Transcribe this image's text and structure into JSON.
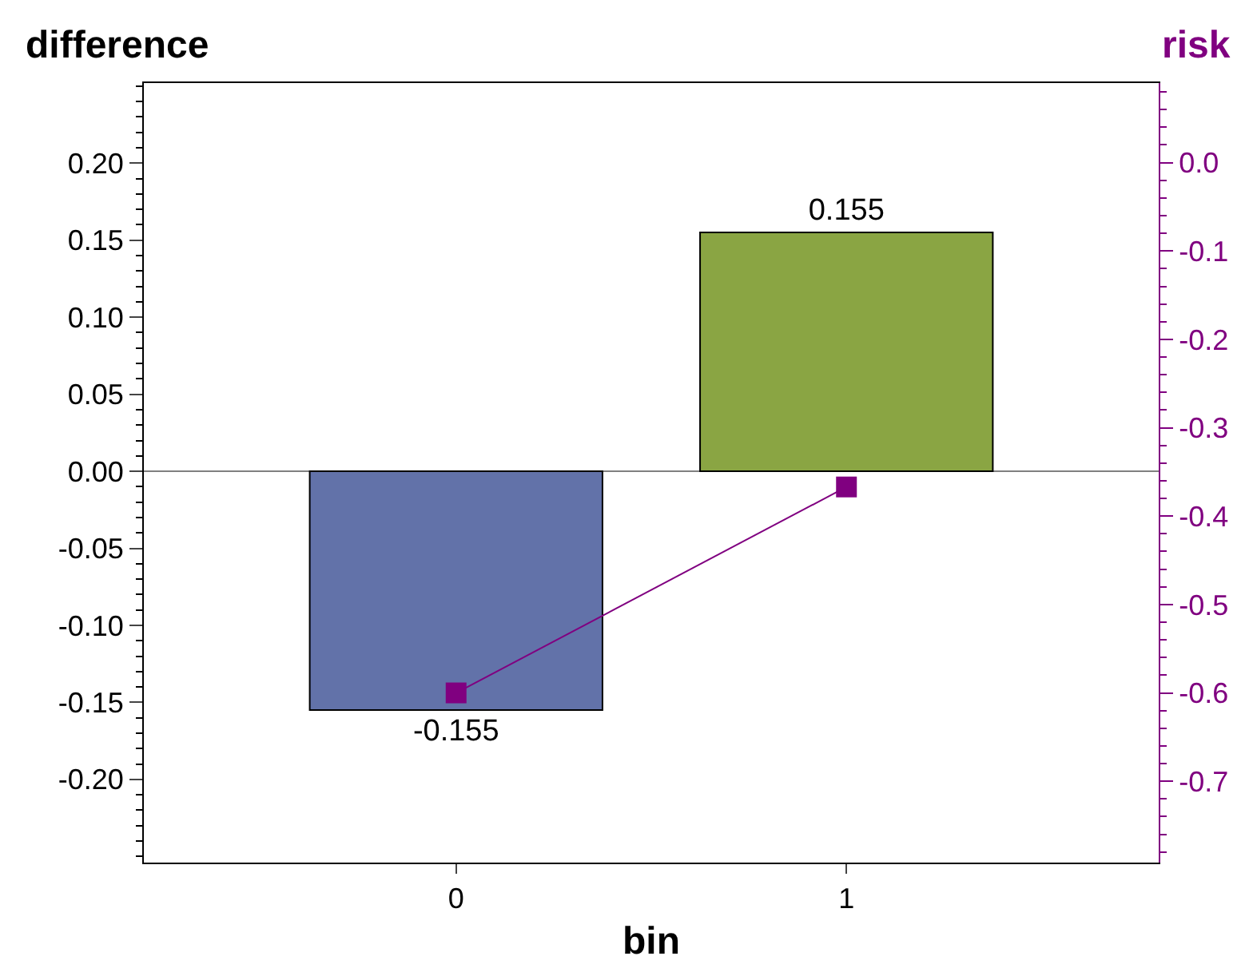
{
  "chart_data": {
    "type": "bar",
    "ylabel": "difference",
    "y2label": "risk",
    "xlabel": "bin",
    "categories": [
      "0",
      "1"
    ],
    "series": [
      {
        "colors": [
          "#6272a9",
          "#8aa543"
        ],
        "values": [
          -0.155,
          0.155
        ],
        "value_labels": [
          "-0.155",
          "0.155"
        ]
      },
      {
        "type": "line",
        "axis": "y2",
        "color": "#800080",
        "values": [
          -0.6,
          -0.367
        ],
        "marker": "square"
      }
    ],
    "ylim": [
      -0.254,
      0.252
    ],
    "yticks": [
      {
        "value": -0.2,
        "label": "-0.20"
      },
      {
        "value": -0.15,
        "label": "-0.15"
      },
      {
        "value": -0.1,
        "label": "-0.10"
      },
      {
        "value": -0.05,
        "label": "-0.05"
      },
      {
        "value": 0,
        "label": "0.00"
      },
      {
        "value": 0.05,
        "label": "0.05"
      },
      {
        "value": 0.1,
        "label": "0.10"
      },
      {
        "value": 0.15,
        "label": "0.15"
      },
      {
        "value": 0.2,
        "label": "0.20"
      }
    ],
    "y2lim": [
      -0.792,
      0.09
    ],
    "y2ticks": [
      {
        "value": -0.7,
        "label": "-0.7"
      },
      {
        "value": -0.6,
        "label": "-0.6"
      },
      {
        "value": -0.5,
        "label": "-0.5"
      },
      {
        "value": -0.4,
        "label": "-0.4"
      },
      {
        "value": -0.3,
        "label": "-0.3"
      },
      {
        "value": -0.2,
        "label": "-0.2"
      },
      {
        "value": -0.1,
        "label": "-0.1"
      },
      {
        "value": 0,
        "label": "0.0"
      }
    ],
    "ref_lines": [
      {
        "axis": "y",
        "value": 0,
        "color": "#808080"
      }
    ],
    "grid": false,
    "legend": false
  }
}
